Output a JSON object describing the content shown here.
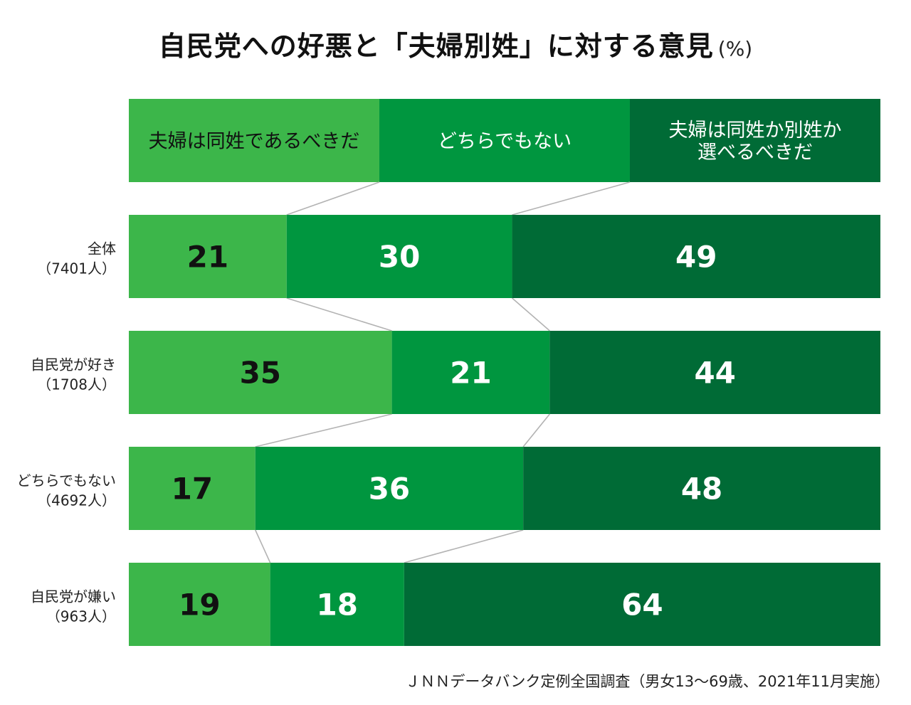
{
  "chart_data": {
    "type": "bar",
    "orientation": "horizontal",
    "stacked": "100%",
    "title": "自民党への好悪と「夫婦別姓」に対する意見",
    "unit": "(%)",
    "legend_position": "top",
    "legend": [
      {
        "name": "夫婦は同姓であるべきだ",
        "lines": [
          "夫婦は同姓であるべきだ"
        ],
        "color": "#3cb64a",
        "text_color": "#111111"
      },
      {
        "name": "どちらでもない",
        "lines": [
          "どちらでもない"
        ],
        "color": "#00963f",
        "text_color": "#ffffff"
      },
      {
        "name": "夫婦は同姓か別姓か選べるべきだ",
        "lines": [
          "夫婦は同姓か別姓か",
          "選べるべきだ"
        ],
        "color": "#006b36",
        "text_color": "#ffffff"
      }
    ],
    "categories": [
      {
        "name": "全体",
        "n": "（7401人）"
      },
      {
        "name": "自民党が好き",
        "n": "（1708人）"
      },
      {
        "name": "どちらでもない",
        "n": "（4692人）"
      },
      {
        "name": "自民党が嫌い",
        "n": "（963人）"
      }
    ],
    "series": [
      {
        "name": "夫婦は同姓であるべきだ",
        "values": [
          21,
          35,
          17,
          19
        ]
      },
      {
        "name": "どちらでもない",
        "values": [
          30,
          21,
          36,
          18
        ]
      },
      {
        "name": "夫婦は同姓か別姓か選べるべきだ",
        "values": [
          49,
          44,
          48,
          64
        ]
      }
    ],
    "grid": false,
    "connector_color": "#b3b3b3"
  },
  "source": "ＪＮＮデータバンク定例全国調査（男女13〜69歳、2021年11月実施）"
}
